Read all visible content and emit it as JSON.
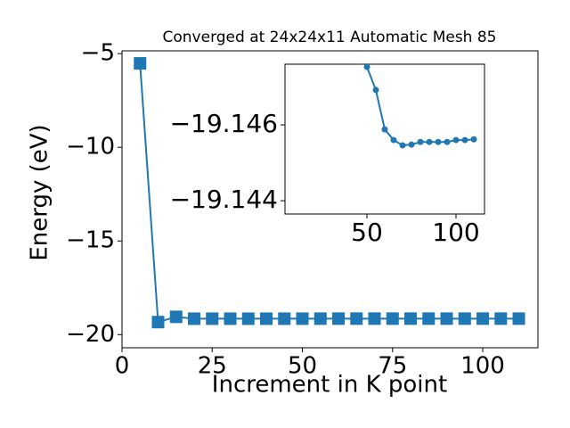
{
  "chart_data": [
    {
      "type": "line",
      "title": "Converged at 24x24x11 Automatic Mesh 85",
      "xlabel": "Increment in K point",
      "ylabel": "Energy (eV)",
      "x": [
        5,
        10,
        15,
        20,
        25,
        30,
        35,
        40,
        45,
        50,
        55,
        60,
        65,
        70,
        75,
        80,
        85,
        90,
        95,
        100,
        105,
        110
      ],
      "series": [
        {
          "color": "#1f77b4",
          "marker": "square",
          "values": [
            -5.52,
            -19.33,
            -19.05,
            -19.15,
            -19.15,
            -19.15,
            -19.15,
            -19.15,
            -19.15,
            -19.1475,
            -19.1469,
            -19.1459,
            -19.1456,
            -19.1455,
            -19.1455,
            -19.1456,
            -19.1456,
            -19.1456,
            -19.1456,
            -19.1456,
            -19.1456,
            -19.1456
          ]
        }
      ],
      "xlim": [
        0,
        115.3
      ],
      "ylim": [
        -20.7,
        -4.85
      ],
      "xticks": [
        0,
        25,
        50,
        75,
        100
      ],
      "yticks": [
        {
          "value": -5,
          "label": "−5"
        },
        {
          "value": -10,
          "label": "−10"
        },
        {
          "value": -15,
          "label": "−15"
        },
        {
          "value": -20,
          "label": "−20"
        }
      ]
    },
    {
      "type": "line",
      "x": [
        50,
        55,
        60,
        65,
        70,
        75,
        80,
        85,
        90,
        95,
        100,
        105,
        110
      ],
      "series": [
        {
          "color": "#1f77b4",
          "marker": "circle",
          "values": [
            -19.14753,
            -19.14692,
            -19.14588,
            -19.1456,
            -19.14546,
            -19.14548,
            -19.14555,
            -19.14555,
            -19.14555,
            -19.14555,
            -19.1456,
            -19.1456,
            -19.14562
          ]
        }
      ],
      "xlim": [
        4,
        116
      ],
      "ylim": [
        -19.14365,
        -19.1476
      ],
      "xticks": [
        50,
        100
      ],
      "yticks": [
        {
          "value": -19.146,
          "label": "−19.146"
        },
        {
          "value": -19.144,
          "label": "−19.144"
        }
      ]
    }
  ]
}
